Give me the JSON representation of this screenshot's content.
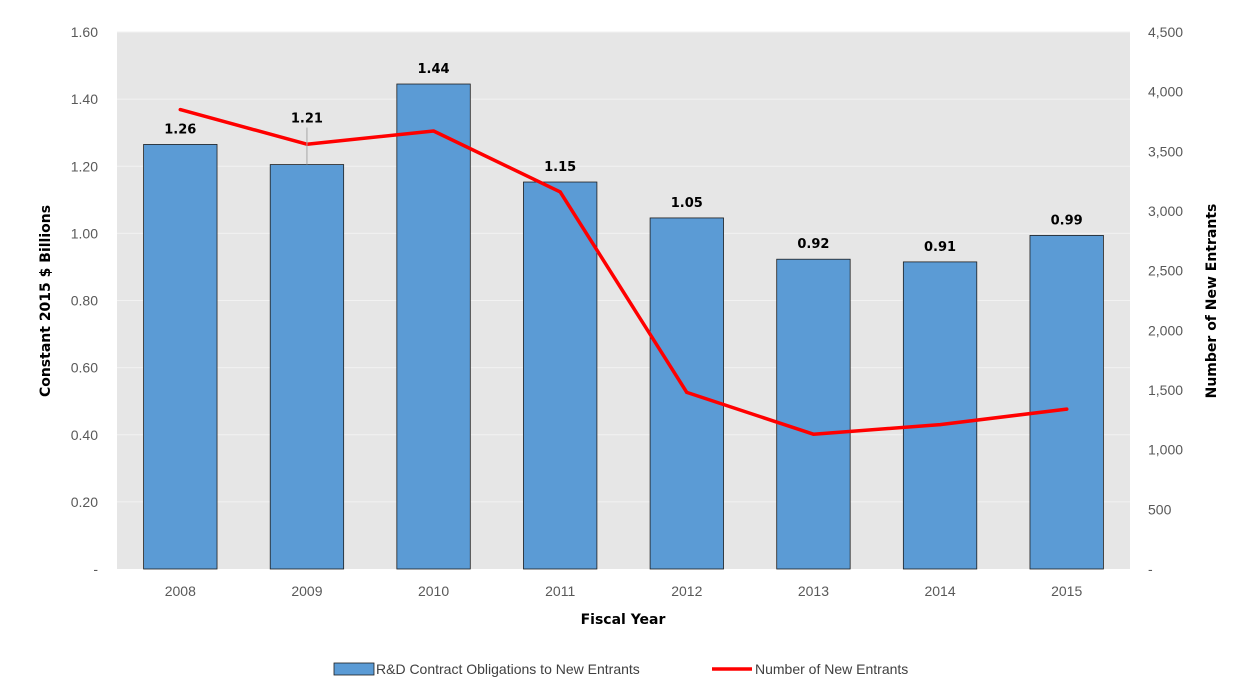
{
  "chart_data": {
    "type": "bar",
    "title": "",
    "categories": [
      "2008",
      "2009",
      "2010",
      "2011",
      "2012",
      "2013",
      "2014",
      "2015"
    ],
    "xlabel": "Fiscal Year",
    "ylabel": "Constant 2015 $ Billions",
    "y2label": "Number of New Entrants",
    "ylim": [
      0,
      1.6
    ],
    "y2lim": [
      0,
      4500
    ],
    "y_ticks": [
      "-",
      "0.20",
      "0.40",
      "0.60",
      "0.80",
      "1.00",
      "1.20",
      "1.40",
      "1.60"
    ],
    "y2_ticks": [
      "-",
      "500",
      "1,000",
      "1,500",
      "2,000",
      "2,500",
      "3,000",
      "3,500",
      "4,000",
      "4,500"
    ],
    "grid": true,
    "legend_position": "bottom",
    "series": [
      {
        "name": "R&D Contract Obligations to New Entrants",
        "type": "bar",
        "axis": "left",
        "color": "#5b9bd5",
        "values": [
          1.265,
          1.205,
          1.445,
          1.153,
          1.046,
          0.923,
          0.915,
          0.994
        ],
        "labels": [
          "1.26",
          "1.21",
          "1.44",
          "1.15",
          "1.05",
          "0.92",
          "0.91",
          "0.99"
        ]
      },
      {
        "name": "Number of New Entrants",
        "type": "line",
        "axis": "right",
        "color": "#ff0000",
        "values": [
          3850,
          3560,
          3670,
          3160,
          1480,
          1130,
          1210,
          1340
        ]
      }
    ],
    "colors": {
      "plot_background": "#e6e6e6",
      "gridline": "#f2f2f2",
      "bar_fill": "#5b9bd5",
      "bar_border": "#1f1f1f",
      "line": "#ff0000"
    }
  }
}
